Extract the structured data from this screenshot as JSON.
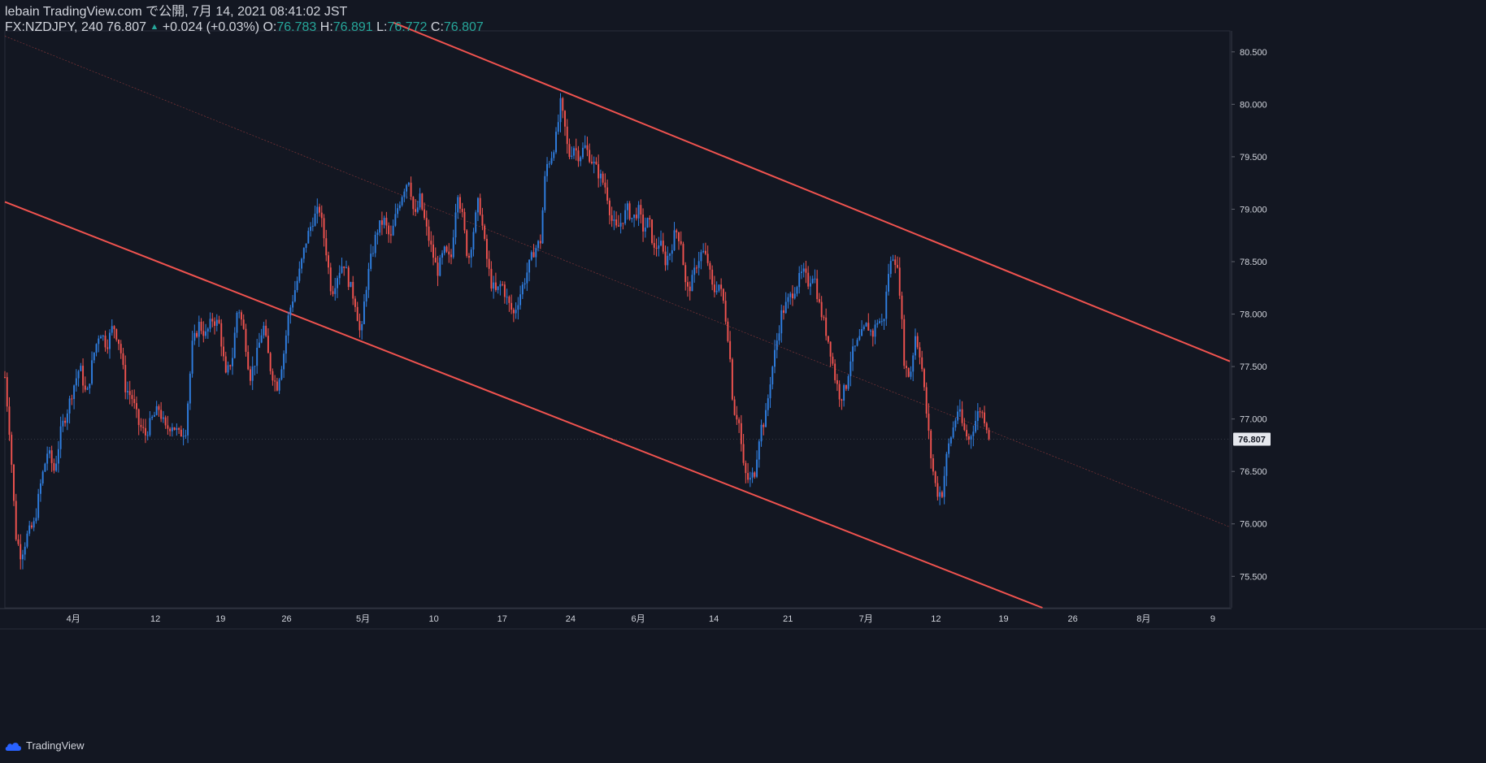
{
  "header": {
    "publisher": "lebain TradingView.com で公開, 7月 14, 2021 08:41:02 JST",
    "symbol": "FX:NZDJPY, 240",
    "last": "76.807",
    "change": "+0.024 (+0.03%)",
    "o_label": "O:",
    "o_value": "76.783",
    "h_label": "H:",
    "h_value": "76.891",
    "l_label": "L:",
    "l_value": "76.772",
    "c_label": "C:",
    "c_value": "76.807"
  },
  "footer": {
    "brand": "TradingView",
    "logo_icon": "tradingview-cloud-icon"
  },
  "colors": {
    "background": "#131722",
    "up": "#2f7ee0",
    "down": "#f0534f",
    "channel": "#f0534f",
    "axis_text": "#d1d4dc",
    "price_tag_bg": "#e6e8ee"
  },
  "chart_data": {
    "type": "candlestick",
    "symbol": "FX:NZDJPY",
    "interval": "240",
    "ylim": [
      75.2,
      80.7
    ],
    "y_ticks": [
      "80.500",
      "80.000",
      "79.500",
      "79.000",
      "78.500",
      "78.000",
      "77.500",
      "77.000",
      "76.500",
      "76.000",
      "75.500"
    ],
    "x_ticks": [
      "4月",
      "12",
      "19",
      "26",
      "5月",
      "10",
      "17",
      "24",
      "6月",
      "14",
      "21",
      "7月",
      "12",
      "19",
      "26",
      "8月",
      "9"
    ],
    "last_price": "76.807",
    "grid": false,
    "close_path": [
      [
        0.0,
        77.4
      ],
      [
        0.4,
        76.8
      ],
      [
        0.8,
        75.9
      ],
      [
        1.2,
        75.7
      ],
      [
        1.7,
        75.9
      ],
      [
        2.2,
        76.0
      ],
      [
        2.7,
        76.4
      ],
      [
        3.2,
        76.7
      ],
      [
        3.7,
        76.5
      ],
      [
        4.2,
        76.9
      ],
      [
        4.7,
        77.1
      ],
      [
        5.1,
        77.3
      ],
      [
        5.6,
        77.5
      ],
      [
        6.1,
        77.2
      ],
      [
        6.6,
        77.6
      ],
      [
        7.1,
        77.85
      ],
      [
        7.6,
        77.7
      ],
      [
        8.1,
        77.9
      ],
      [
        8.6,
        77.7
      ],
      [
        9.0,
        77.3
      ],
      [
        9.5,
        77.2
      ],
      [
        10.0,
        76.95
      ],
      [
        10.5,
        76.85
      ],
      [
        11.0,
        77.0
      ],
      [
        11.5,
        77.1
      ],
      [
        12.0,
        76.9
      ],
      [
        12.5,
        76.95
      ],
      [
        13.0,
        76.85
      ],
      [
        13.5,
        76.9
      ],
      [
        14.0,
        77.7
      ],
      [
        14.5,
        77.9
      ],
      [
        15.0,
        77.8
      ],
      [
        15.5,
        77.95
      ],
      [
        16.0,
        77.9
      ],
      [
        16.5,
        77.4
      ],
      [
        17.0,
        77.6
      ],
      [
        17.4,
        78.1
      ],
      [
        17.9,
        77.8
      ],
      [
        18.3,
        77.4
      ],
      [
        18.8,
        77.6
      ],
      [
        19.3,
        77.9
      ],
      [
        19.8,
        77.5
      ],
      [
        20.3,
        77.3
      ],
      [
        20.8,
        77.6
      ],
      [
        21.2,
        78.0
      ],
      [
        21.6,
        78.2
      ],
      [
        22.0,
        78.4
      ],
      [
        22.5,
        78.7
      ],
      [
        23.0,
        78.9
      ],
      [
        23.5,
        79.0
      ],
      [
        24.0,
        78.6
      ],
      [
        24.4,
        78.2
      ],
      [
        24.9,
        78.4
      ],
      [
        25.3,
        78.5
      ],
      [
        25.7,
        78.3
      ],
      [
        26.2,
        78.1
      ],
      [
        26.6,
        77.75
      ],
      [
        26.9,
        78.2
      ],
      [
        27.3,
        78.5
      ],
      [
        27.8,
        78.8
      ],
      [
        28.3,
        78.9
      ],
      [
        28.8,
        78.7
      ],
      [
        29.3,
        79.0
      ],
      [
        29.8,
        79.2
      ],
      [
        30.2,
        79.3
      ],
      [
        30.6,
        78.9
      ],
      [
        31.0,
        79.1
      ],
      [
        31.5,
        78.8
      ],
      [
        31.9,
        78.6
      ],
      [
        32.3,
        78.4
      ],
      [
        32.8,
        78.6
      ],
      [
        33.3,
        78.5
      ],
      [
        33.8,
        79.2
      ],
      [
        34.2,
        78.9
      ],
      [
        34.6,
        78.5
      ],
      [
        35.0,
        78.8
      ],
      [
        35.4,
        79.1
      ],
      [
        35.9,
        78.6
      ],
      [
        36.3,
        78.3
      ],
      [
        36.7,
        78.2
      ],
      [
        37.1,
        78.3
      ],
      [
        37.6,
        78.1
      ],
      [
        38.0,
        78.0
      ],
      [
        38.5,
        78.2
      ],
      [
        39.0,
        78.4
      ],
      [
        39.5,
        78.6
      ],
      [
        40.0,
        78.7
      ],
      [
        40.4,
        79.4
      ],
      [
        40.8,
        79.5
      ],
      [
        41.2,
        79.7
      ],
      [
        41.5,
        80.0
      ],
      [
        41.8,
        79.8
      ],
      [
        42.1,
        79.5
      ],
      [
        42.5,
        79.6
      ],
      [
        42.9,
        79.5
      ],
      [
        43.3,
        79.6
      ],
      [
        43.7,
        79.5
      ],
      [
        44.1,
        79.4
      ],
      [
        44.5,
        79.3
      ],
      [
        44.9,
        79.2
      ],
      [
        45.3,
        78.9
      ],
      [
        45.7,
        78.8
      ],
      [
        46.1,
        78.9
      ],
      [
        46.5,
        79.0
      ],
      [
        46.9,
        78.9
      ],
      [
        47.3,
        79.0
      ],
      [
        47.7,
        78.8
      ],
      [
        48.1,
        78.9
      ],
      [
        48.5,
        78.6
      ],
      [
        48.9,
        78.7
      ],
      [
        49.3,
        78.5
      ],
      [
        49.7,
        78.6
      ],
      [
        50.1,
        78.8
      ],
      [
        50.5,
        78.7
      ],
      [
        50.9,
        78.2
      ],
      [
        51.3,
        78.3
      ],
      [
        51.7,
        78.5
      ],
      [
        52.1,
        78.6
      ],
      [
        52.5,
        78.5
      ],
      [
        52.9,
        78.2
      ],
      [
        53.3,
        78.3
      ],
      [
        53.7,
        78.1
      ],
      [
        54.1,
        77.7
      ],
      [
        54.4,
        77.1
      ],
      [
        54.8,
        77.0
      ],
      [
        55.2,
        76.5
      ],
      [
        55.6,
        76.4
      ],
      [
        56.0,
        76.5
      ],
      [
        56.4,
        76.9
      ],
      [
        56.8,
        77.0
      ],
      [
        57.2,
        77.4
      ],
      [
        57.6,
        77.7
      ],
      [
        58.0,
        78.0
      ],
      [
        58.4,
        78.1
      ],
      [
        58.8,
        78.2
      ],
      [
        59.2,
        78.3
      ],
      [
        59.6,
        78.4
      ],
      [
        60.0,
        78.3
      ],
      [
        60.4,
        78.4
      ],
      [
        60.8,
        78.1
      ],
      [
        61.2,
        77.9
      ],
      [
        61.6,
        77.7
      ],
      [
        62.0,
        77.4
      ],
      [
        62.4,
        77.2
      ],
      [
        62.8,
        77.3
      ],
      [
        63.2,
        77.6
      ],
      [
        63.6,
        77.7
      ],
      [
        64.0,
        77.8
      ],
      [
        64.4,
        77.9
      ],
      [
        64.8,
        77.8
      ],
      [
        65.2,
        77.95
      ],
      [
        65.6,
        77.9
      ],
      [
        66.0,
        78.4
      ],
      [
        66.4,
        78.6
      ],
      [
        66.8,
        78.3
      ],
      [
        67.2,
        77.5
      ],
      [
        67.6,
        77.4
      ],
      [
        68.0,
        77.8
      ],
      [
        68.4,
        77.6
      ],
      [
        68.8,
        77.1
      ],
      [
        69.2,
        76.6
      ],
      [
        69.6,
        76.3
      ],
      [
        70.0,
        76.3
      ],
      [
        70.4,
        76.7
      ],
      [
        70.8,
        76.9
      ],
      [
        71.2,
        77.1
      ],
      [
        71.6,
        76.9
      ],
      [
        72.0,
        76.8
      ],
      [
        72.4,
        76.95
      ],
      [
        72.8,
        77.1
      ],
      [
        73.2,
        77.0
      ],
      [
        73.6,
        76.807
      ]
    ],
    "channel_lines": [
      {
        "name": "upper",
        "from": [
          29.0,
          80.78
        ],
        "to": [
          91.5,
          77.55
        ]
      },
      {
        "name": "lower",
        "from": [
          0.0,
          79.07
        ],
        "to": [
          77.5,
          75.2
        ]
      },
      {
        "name": "mid",
        "from": [
          0.0,
          80.65
        ],
        "to": [
          91.5,
          75.97
        ]
      }
    ]
  }
}
